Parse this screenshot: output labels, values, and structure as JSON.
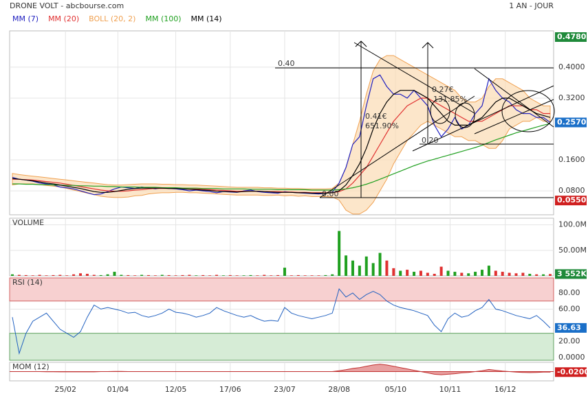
{
  "header": {
    "title": "DRONE VOLT - abcbourse.com",
    "period": "1 AN - JOUR"
  },
  "chart_data": [
    {
      "type": "line",
      "title": "DRONE VOLT",
      "xlim": [
        0,
        79
      ],
      "xticks": [
        {
          "value": 7.8,
          "label": "25/02"
        },
        {
          "value": 15.5,
          "label": "01/04"
        },
        {
          "value": 24,
          "label": "12/05"
        },
        {
          "value": 32,
          "label": "17/06"
        },
        {
          "value": 40,
          "label": "23/07"
        },
        {
          "value": 48,
          "label": "28/08"
        },
        {
          "value": 56.3,
          "label": "05/10"
        },
        {
          "value": 64.3,
          "label": "10/11"
        },
        {
          "value": 72.4,
          "label": "16/12"
        }
      ],
      "ylim": [
        0.018,
        0.494
      ],
      "yticks": [
        {
          "value": 0.4,
          "label": "0.4000"
        },
        {
          "value": 0.32,
          "label": "0.3200"
        },
        {
          "value": 0.16,
          "label": "0.1600"
        },
        {
          "value": 0.08,
          "label": "0.0800"
        }
      ],
      "high": {
        "value": 0.478,
        "label": "0.4780"
      },
      "last": {
        "value": 0.257,
        "label": "0.2570"
      },
      "low": {
        "value": 0.055,
        "label": "0.0550"
      },
      "annotations": [
        "0.40",
        "0.27€",
        "131.85%",
        "0.41€",
        "651.90%",
        "0.20",
        "0.00"
      ],
      "series": [
        {
          "name": "MM (7)",
          "color": "#2020c0",
          "values": [
            0.115,
            0.11,
            0.108,
            0.105,
            0.1,
            0.098,
            0.095,
            0.09,
            0.088,
            0.085,
            0.08,
            0.075,
            0.07,
            0.072,
            0.078,
            0.085,
            0.09,
            0.088,
            0.086,
            0.09,
            0.087,
            0.085,
            0.088,
            0.086,
            0.085,
            0.083,
            0.08,
            0.082,
            0.08,
            0.078,
            0.075,
            0.078,
            0.077,
            0.076,
            0.08,
            0.082,
            0.078,
            0.076,
            0.075,
            0.074,
            0.078,
            0.076,
            0.075,
            0.074,
            0.073,
            0.072,
            0.074,
            0.076,
            0.1,
            0.14,
            0.2,
            0.22,
            0.3,
            0.37,
            0.38,
            0.35,
            0.33,
            0.33,
            0.32,
            0.34,
            0.32,
            0.3,
            0.25,
            0.22,
            0.24,
            0.27,
            0.24,
            0.25,
            0.28,
            0.3,
            0.37,
            0.34,
            0.32,
            0.31,
            0.29,
            0.28,
            0.28,
            0.27,
            0.27,
            0.257
          ]
        },
        {
          "name": "MM (20)",
          "color": "#e03030",
          "values": [
            0.11,
            0.11,
            0.109,
            0.108,
            0.106,
            0.104,
            0.102,
            0.1,
            0.097,
            0.094,
            0.091,
            0.088,
            0.085,
            0.082,
            0.08,
            0.079,
            0.079,
            0.08,
            0.082,
            0.083,
            0.085,
            0.086,
            0.086,
            0.086,
            0.086,
            0.086,
            0.085,
            0.085,
            0.084,
            0.083,
            0.082,
            0.081,
            0.08,
            0.079,
            0.079,
            0.079,
            0.079,
            0.078,
            0.078,
            0.078,
            0.077,
            0.077,
            0.076,
            0.076,
            0.075,
            0.075,
            0.075,
            0.075,
            0.078,
            0.085,
            0.1,
            0.12,
            0.14,
            0.17,
            0.2,
            0.23,
            0.26,
            0.28,
            0.3,
            0.31,
            0.32,
            0.32,
            0.31,
            0.3,
            0.29,
            0.28,
            0.27,
            0.26,
            0.26,
            0.26,
            0.27,
            0.28,
            0.29,
            0.3,
            0.3,
            0.3,
            0.29,
            0.29,
            0.28,
            0.28
          ]
        },
        {
          "name": "BOLL (20, 2)",
          "color": "#f0a050",
          "upper": [
            0.125,
            0.122,
            0.12,
            0.118,
            0.116,
            0.114,
            0.112,
            0.11,
            0.108,
            0.106,
            0.104,
            0.102,
            0.1,
            0.098,
            0.096,
            0.095,
            0.095,
            0.096,
            0.097,
            0.098,
            0.098,
            0.098,
            0.097,
            0.097,
            0.096,
            0.096,
            0.095,
            0.095,
            0.094,
            0.093,
            0.092,
            0.091,
            0.09,
            0.089,
            0.089,
            0.089,
            0.089,
            0.088,
            0.088,
            0.087,
            0.087,
            0.086,
            0.086,
            0.085,
            0.085,
            0.085,
            0.085,
            0.086,
            0.1,
            0.14,
            0.2,
            0.26,
            0.33,
            0.39,
            0.42,
            0.43,
            0.43,
            0.42,
            0.41,
            0.4,
            0.39,
            0.38,
            0.37,
            0.36,
            0.35,
            0.34,
            0.32,
            0.31,
            0.31,
            0.32,
            0.35,
            0.37,
            0.37,
            0.36,
            0.35,
            0.34,
            0.32,
            0.31,
            0.3,
            0.3
          ],
          "lower": [
            0.095,
            0.098,
            0.098,
            0.098,
            0.096,
            0.094,
            0.092,
            0.09,
            0.086,
            0.082,
            0.078,
            0.074,
            0.07,
            0.066,
            0.064,
            0.063,
            0.063,
            0.064,
            0.067,
            0.068,
            0.072,
            0.074,
            0.075,
            0.075,
            0.076,
            0.076,
            0.075,
            0.075,
            0.074,
            0.073,
            0.072,
            0.071,
            0.07,
            0.069,
            0.069,
            0.069,
            0.069,
            0.068,
            0.068,
            0.069,
            0.067,
            0.068,
            0.066,
            0.067,
            0.065,
            0.065,
            0.065,
            0.064,
            0.056,
            0.03,
            0.02,
            0.02,
            0.03,
            0.05,
            0.08,
            0.11,
            0.15,
            0.18,
            0.21,
            0.23,
            0.25,
            0.26,
            0.25,
            0.24,
            0.23,
            0.22,
            0.22,
            0.21,
            0.21,
            0.2,
            0.19,
            0.19,
            0.21,
            0.24,
            0.25,
            0.26,
            0.26,
            0.27,
            0.26,
            0.26
          ]
        },
        {
          "name": "MM (100)",
          "color": "#20a020",
          "values": [
            0.098,
            0.098,
            0.097,
            0.097,
            0.096,
            0.096,
            0.095,
            0.095,
            0.094,
            0.094,
            0.093,
            0.093,
            0.092,
            0.092,
            0.091,
            0.091,
            0.09,
            0.09,
            0.09,
            0.089,
            0.089,
            0.089,
            0.088,
            0.088,
            0.088,
            0.087,
            0.087,
            0.087,
            0.086,
            0.086,
            0.086,
            0.085,
            0.085,
            0.085,
            0.085,
            0.084,
            0.084,
            0.084,
            0.084,
            0.083,
            0.083,
            0.083,
            0.083,
            0.083,
            0.082,
            0.082,
            0.082,
            0.082,
            0.083,
            0.085,
            0.088,
            0.092,
            0.097,
            0.103,
            0.11,
            0.117,
            0.124,
            0.131,
            0.138,
            0.145,
            0.151,
            0.157,
            0.162,
            0.167,
            0.172,
            0.177,
            0.182,
            0.187,
            0.192,
            0.198,
            0.205,
            0.212,
            0.218,
            0.224,
            0.23,
            0.235,
            0.24,
            0.245,
            0.25,
            0.254
          ]
        },
        {
          "name": "MM (14)",
          "color": "#000000",
          "values": [
            0.112,
            0.11,
            0.108,
            0.106,
            0.103,
            0.1,
            0.098,
            0.095,
            0.092,
            0.089,
            0.086,
            0.082,
            0.078,
            0.076,
            0.076,
            0.078,
            0.081,
            0.084,
            0.086,
            0.087,
            0.087,
            0.087,
            0.087,
            0.086,
            0.086,
            0.085,
            0.084,
            0.083,
            0.082,
            0.081,
            0.079,
            0.078,
            0.078,
            0.077,
            0.078,
            0.079,
            0.079,
            0.078,
            0.077,
            0.076,
            0.076,
            0.076,
            0.075,
            0.075,
            0.074,
            0.074,
            0.074,
            0.075,
            0.08,
            0.095,
            0.12,
            0.15,
            0.19,
            0.24,
            0.28,
            0.31,
            0.33,
            0.34,
            0.34,
            0.34,
            0.33,
            0.32,
            0.3,
            0.28,
            0.26,
            0.25,
            0.25,
            0.25,
            0.26,
            0.27,
            0.29,
            0.31,
            0.32,
            0.32,
            0.31,
            0.3,
            0.29,
            0.28,
            0.275,
            0.27
          ]
        }
      ]
    },
    {
      "type": "bar",
      "title": "VOLUME",
      "ylim": [
        0,
        113
      ],
      "yticks": [
        {
          "value": 100,
          "label": "100.0M"
        },
        {
          "value": 50,
          "label": "50.00M"
        }
      ],
      "last": {
        "value": 3.552,
        "label": "3 552K"
      },
      "values": [
        3,
        2,
        1.5,
        1,
        2,
        1,
        1.5,
        2,
        1,
        3,
        5,
        4,
        2,
        1.5,
        3,
        8,
        2,
        1.5,
        1,
        2,
        1.5,
        1,
        2,
        1.5,
        1,
        1.5,
        2,
        1,
        1.5,
        1,
        2,
        1,
        1.5,
        1,
        1,
        1.5,
        1,
        2,
        1,
        1.5,
        16,
        1,
        1.5,
        1,
        1,
        1,
        1.5,
        3,
        88,
        40,
        30,
        20,
        38,
        25,
        45,
        30,
        15,
        10,
        12,
        8,
        10,
        6,
        4,
        18,
        10,
        8,
        6,
        5,
        8,
        12,
        20,
        10,
        8,
        6,
        5,
        6,
        4,
        3,
        3,
        3.552
      ],
      "up_color": "#20a020",
      "down_color": "#e03030"
    },
    {
      "type": "line",
      "title": "RSI (14)",
      "ylim": [
        -3.5,
        98.7
      ],
      "yticks": [
        {
          "value": 80,
          "label": "80.00"
        },
        {
          "value": 60,
          "label": "60.00"
        },
        {
          "value": 20,
          "label": "20.00"
        },
        {
          "value": 0,
          "label": "0.0000"
        }
      ],
      "overbought": 70,
      "oversold": 30,
      "color": "#2060c0",
      "last": {
        "value": 36.63,
        "label": "36.63"
      },
      "values": [
        50,
        5,
        30,
        45,
        50,
        55,
        45,
        35,
        30,
        25,
        32,
        50,
        65,
        60,
        62,
        60,
        58,
        55,
        56,
        52,
        50,
        52,
        55,
        60,
        56,
        55,
        53,
        50,
        52,
        55,
        62,
        58,
        55,
        52,
        50,
        52,
        48,
        45,
        46,
        45,
        62,
        55,
        52,
        50,
        48,
        50,
        52,
        55,
        85,
        75,
        80,
        72,
        78,
        82,
        78,
        70,
        65,
        62,
        60,
        58,
        55,
        52,
        40,
        32,
        48,
        55,
        50,
        52,
        58,
        62,
        72,
        60,
        58,
        55,
        52,
        50,
        48,
        52,
        45,
        36.63
      ]
    },
    {
      "type": "area",
      "title": "MOM (12)",
      "ylim": [
        -0.35,
        0.35
      ],
      "color": "#c03030",
      "last": {
        "value": -0.02,
        "label": "-0.0200"
      },
      "values": [
        0,
        0,
        0,
        0,
        0,
        -0.005,
        -0.005,
        -0.01,
        -0.01,
        -0.01,
        -0.01,
        -0.01,
        -0.01,
        0,
        0,
        0.005,
        0.005,
        0,
        0,
        0,
        0,
        0,
        0,
        0,
        0,
        0,
        0,
        0,
        0,
        0,
        0,
        0,
        0,
        0,
        0,
        0,
        0,
        0,
        0,
        0,
        0,
        0,
        0,
        0,
        0,
        0,
        0,
        0,
        0.03,
        0.07,
        0.12,
        0.15,
        0.2,
        0.25,
        0.28,
        0.25,
        0.2,
        0.15,
        0.1,
        0.05,
        0,
        -0.05,
        -0.1,
        -0.12,
        -0.1,
        -0.08,
        -0.05,
        -0.03,
        0,
        0.03,
        0.08,
        0.05,
        0.02,
        0,
        -0.02,
        -0.03,
        -0.04,
        -0.03,
        -0.02,
        -0.02
      ]
    }
  ]
}
